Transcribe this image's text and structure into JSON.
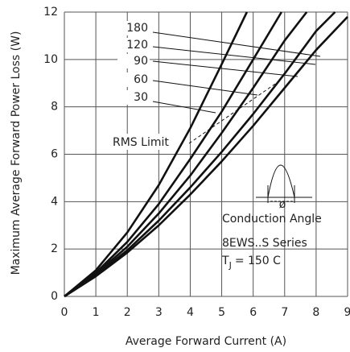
{
  "chart_data": {
    "type": "line",
    "ylabel": "Maximum Average Forward Power Loss (W)",
    "xlabel": "Average Forward Current (A)",
    "xlim": [
      0,
      9
    ],
    "xticks": [
      0,
      1,
      2,
      3,
      4,
      5,
      6,
      7,
      8,
      9
    ],
    "ylim": [
      0,
      12
    ],
    "yticks": [
      0,
      2,
      4,
      6,
      8,
      10,
      12
    ],
    "grid": true,
    "series": [
      {
        "name": "180",
        "color": "#111111",
        "x": [
          0,
          1,
          2,
          3,
          4,
          5,
          6,
          7,
          8,
          9
        ],
        "values": [
          0,
          0.85,
          1.85,
          3.0,
          4.3,
          5.7,
          7.2,
          8.8,
          10.4,
          11.8
        ]
      },
      {
        "name": "120",
        "color": "#111111",
        "x": [
          0,
          1,
          2,
          3,
          4,
          5,
          6,
          7,
          8,
          8.6
        ],
        "values": [
          0,
          0.9,
          1.95,
          3.2,
          4.6,
          6.1,
          7.7,
          9.4,
          11.2,
          12
        ]
      },
      {
        "name": "90",
        "color": "#111111",
        "x": [
          0,
          1,
          2,
          3,
          4,
          5,
          6,
          7,
          7.7
        ],
        "values": [
          0,
          0.95,
          2.1,
          3.5,
          5.1,
          6.9,
          8.8,
          10.8,
          12
        ]
      },
      {
        "name": "60",
        "color": "#111111",
        "x": [
          0,
          1,
          2,
          3,
          4,
          5,
          6,
          6.9
        ],
        "values": [
          0,
          1.0,
          2.3,
          3.9,
          5.8,
          7.8,
          10.0,
          12
        ]
      },
      {
        "name": "30",
        "color": "#111111",
        "x": [
          0,
          1,
          2,
          3,
          4,
          5,
          5.8
        ],
        "values": [
          0,
          1.1,
          2.7,
          4.7,
          7.1,
          9.8,
          12
        ]
      }
    ],
    "annotations": {
      "rms": "RMS Limit",
      "conduction": "Conduction Angle",
      "series": "8EWS..S Series",
      "tj": "T",
      "tj_sub": "J",
      "tj_rest": "= 150  C"
    }
  }
}
